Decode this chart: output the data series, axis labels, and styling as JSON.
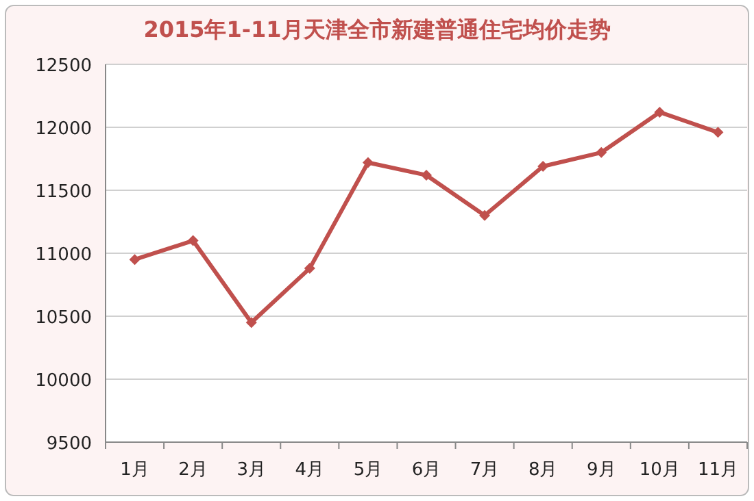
{
  "chart_data": {
    "type": "line",
    "title": "2015年1-11月天津全市新建普通住宅均价走势",
    "categories": [
      "1月",
      "2月",
      "3月",
      "4月",
      "5月",
      "6月",
      "7月",
      "8月",
      "9月",
      "10月",
      "11月"
    ],
    "series": [
      {
        "color": "#c0504d",
        "values": [
          10950,
          11100,
          10450,
          10880,
          11720,
          11620,
          11300,
          11690,
          11800,
          12120,
          11960
        ]
      }
    ],
    "ylim": [
      9500,
      12500
    ],
    "yticks": [
      9500,
      10000,
      10500,
      11000,
      11500,
      12000,
      12500
    ],
    "grid": "y",
    "marker": "diamond",
    "line_style": "solid"
  }
}
